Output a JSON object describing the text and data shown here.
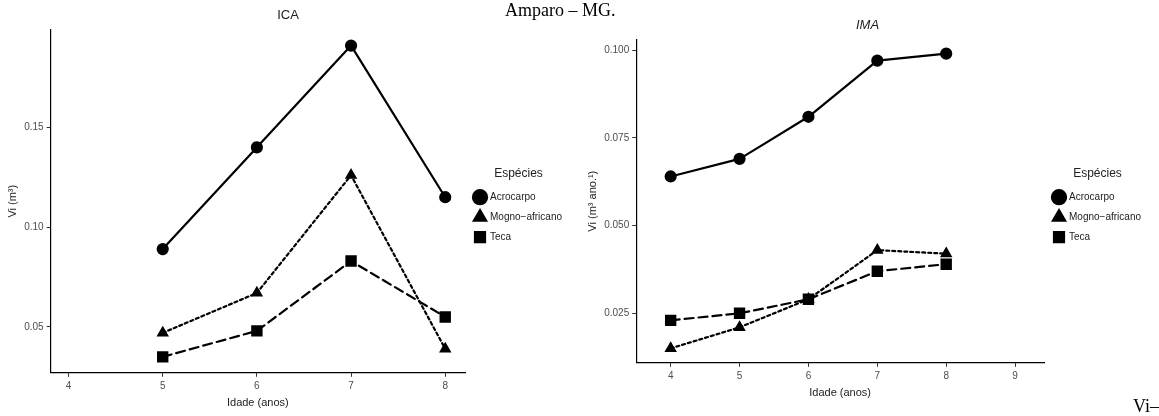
{
  "chart_data": [
    {
      "type": "line",
      "title": "ICA",
      "xlabel": "Idade (anos)",
      "ylabel": "Vi (m³)",
      "legend_title": "Espécies",
      "legend": "right",
      "grid": false,
      "annotations": [
        "Amparo – MG."
      ],
      "x": [
        5,
        6,
        7,
        8
      ],
      "xlim": [
        3.81,
        8.21
      ],
      "xticks": [
        4,
        5,
        6,
        7,
        8
      ],
      "ylim": [
        0.027,
        0.199
      ],
      "yticks": [
        {
          "value": 0.05,
          "label": "0.05"
        },
        {
          "value": 0.1,
          "label": "0.10"
        },
        {
          "value": 0.15,
          "label": "0.15"
        }
      ],
      "series": [
        {
          "name": "Acrocarpo",
          "color": "#000000",
          "marker": "circle",
          "line_style": "solid",
          "values": [
            0.089,
            0.14,
            0.191,
            0.115
          ]
        },
        {
          "name": "Mogno−africano",
          "color": "#000000",
          "marker": "triangle",
          "line_style": "dotted",
          "values": [
            0.047,
            0.067,
            0.126,
            0.039
          ]
        },
        {
          "name": "Teca",
          "color": "#000000",
          "marker": "square",
          "line_style": "dashed",
          "values": [
            0.035,
            0.048,
            0.083,
            0.055
          ]
        }
      ]
    },
    {
      "type": "line",
      "title": "IMA",
      "xlabel": "Idade (anos)",
      "ylabel": "Vi (m³ ano.¹)",
      "legend_title": "Espécies",
      "legend": "right",
      "grid": false,
      "annotations": [
        "Vi–"
      ],
      "x": [
        4,
        5,
        6,
        7,
        8
      ],
      "xlim": [
        3.5,
        9.42
      ],
      "xticks": [
        4,
        5,
        6,
        7,
        8,
        9
      ],
      "ylim": [
        0.0109,
        0.103
      ],
      "yticks": [
        {
          "value": 0.025,
          "label": "0.025"
        },
        {
          "value": 0.05,
          "label": "0.050"
        },
        {
          "value": 0.075,
          "label": "0.075"
        },
        {
          "value": 0.1,
          "label": "0.100"
        }
      ],
      "series": [
        {
          "name": "Acrocarpo",
          "color": "#000000",
          "marker": "circle",
          "line_style": "solid",
          "values": [
            0.064,
            0.069,
            0.081,
            0.097,
            0.099
          ]
        },
        {
          "name": "Mogno−africano",
          "color": "#000000",
          "marker": "triangle",
          "line_style": "dotted",
          "values": [
            0.015,
            0.021,
            0.029,
            0.043,
            0.042
          ]
        },
        {
          "name": "Teca",
          "color": "#000000",
          "marker": "square",
          "line_style": "dashed",
          "values": [
            0.023,
            0.025,
            0.029,
            0.037,
            0.039
          ]
        }
      ]
    }
  ]
}
